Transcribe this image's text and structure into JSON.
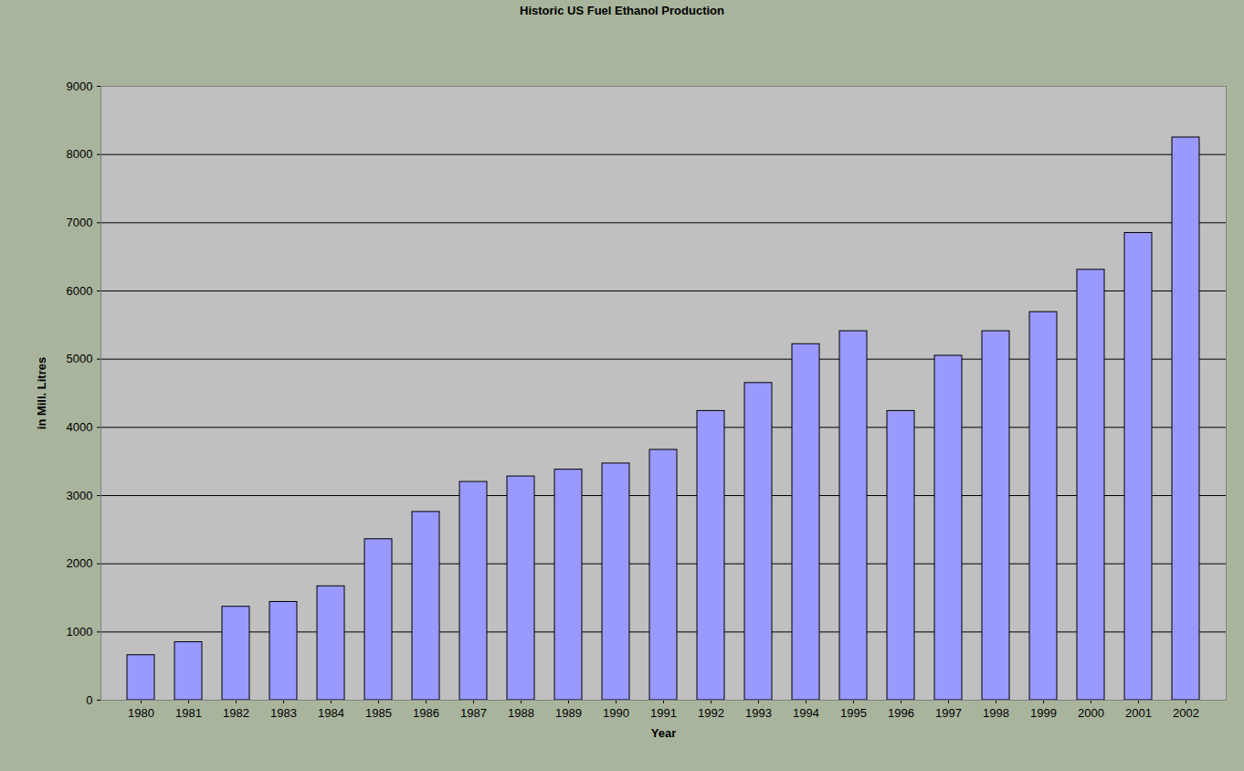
{
  "chart_data": {
    "type": "bar",
    "title": "Historic US Fuel Ethanol Production",
    "x_label": "Year",
    "y_label": "in Mill. Litres",
    "categories": [
      "1980",
      "1981",
      "1982",
      "1983",
      "1984",
      "1985",
      "1986",
      "1987",
      "1988",
      "1989",
      "1990",
      "1991",
      "1992",
      "1993",
      "1994",
      "1995",
      "1996",
      "1997",
      "1998",
      "1999",
      "2000",
      "2001",
      "2002"
    ],
    "values": [
      660,
      850,
      1370,
      1440,
      1670,
      2360,
      2760,
      3200,
      3280,
      3380,
      3470,
      3670,
      4240,
      4650,
      5220,
      5410,
      4240,
      5050,
      5410,
      5690,
      6310,
      6850,
      8250
    ],
    "color": "#9999ff",
    "ylim": [
      0,
      9000
    ],
    "yticks": [
      0,
      1000,
      2000,
      3000,
      4000,
      5000,
      6000,
      7000,
      8000,
      9000
    ],
    "grid": true
  }
}
